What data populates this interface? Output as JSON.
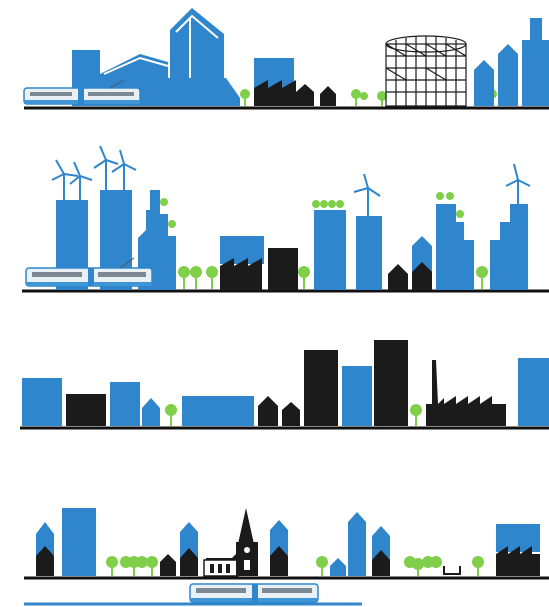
{
  "scene": {
    "kind": "illustration",
    "description_colors": {
      "blue": "#2f86cc",
      "dark": "#1b1b1b",
      "green": "#7fcf4a",
      "ground": "#111111",
      "tram_light": "#e9f1f7",
      "tram_blue": "#3f95d6"
    },
    "rows": [
      {
        "name": "row-1-skyline"
      },
      {
        "name": "row-2-wind-skyline"
      },
      {
        "name": "row-3-industrial-skyline"
      },
      {
        "name": "row-4-village-skyline"
      }
    ]
  }
}
